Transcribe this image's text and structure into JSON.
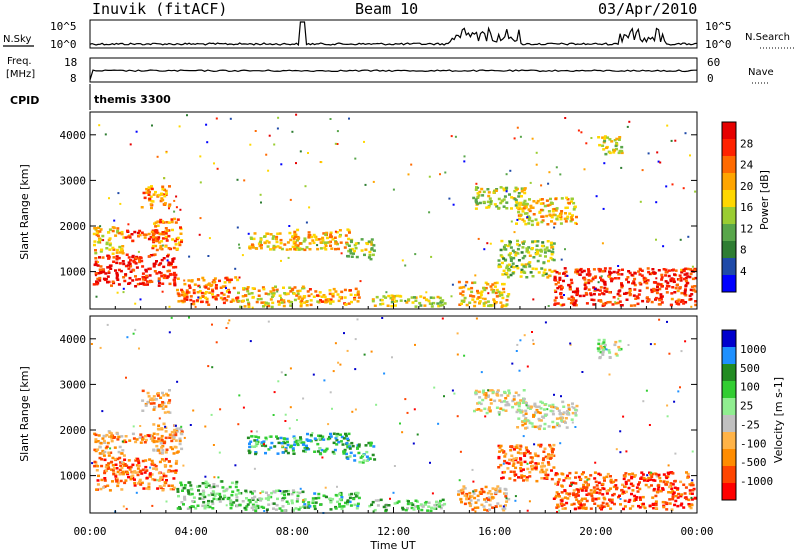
{
  "header": {
    "station": "Inuvik (fitACF)",
    "beam": "Beam 10",
    "date": "03/Apr/2010"
  },
  "nsky": {
    "label": "N.Sky",
    "ticks": [
      "10^5",
      "10^0"
    ],
    "right_label": "N.Search",
    "right_ticks": [
      "10^5",
      "10^0"
    ]
  },
  "freq": {
    "label_lines": [
      "Freq.",
      "[MHz]"
    ],
    "ticks": [
      "18",
      "8"
    ],
    "right_label": "Nave",
    "right_ticks": [
      "60",
      "0"
    ]
  },
  "cpid": {
    "label": "CPID",
    "value": "themis 3300"
  },
  "colors": {
    "power": [
      "#0000ff",
      "#1f4aa8",
      "#2e7d32",
      "#58a64a",
      "#9acd32",
      "#ffd700",
      "#ffa500",
      "#ff6a00",
      "#ff2200",
      "#e60000"
    ],
    "velocity": [
      "#ff0000",
      "#ff4500",
      "#ff8c00",
      "#ffb347",
      "#c0c0c0",
      "#90ee90",
      "#32cd32",
      "#228b22",
      "#1e90ff",
      "#0000cd"
    ]
  },
  "chart_data": [
    {
      "type": "heatmap",
      "title": "Power",
      "ylabel": "Slant Range [km]",
      "colorbar_label": "Power [dB]",
      "ylim": [
        180,
        4500
      ],
      "yticks": [
        1000,
        2000,
        3000,
        4000
      ],
      "colorbar_ticks": [
        "4",
        "8",
        "12",
        "16",
        "20",
        "24",
        "28"
      ],
      "xlim": [
        0,
        24
      ],
      "regions": [
        {
          "x": [
            0.1,
            3.4
          ],
          "y": [
            700,
            1400
          ],
          "v": 0.88
        },
        {
          "x": [
            0.1,
            1.3
          ],
          "y": [
            1400,
            2000
          ],
          "v": 0.6
        },
        {
          "x": [
            1.3,
            3.0
          ],
          "y": [
            1700,
            1950
          ],
          "v": 0.78
        },
        {
          "x": [
            2.0,
            3.1
          ],
          "y": [
            2400,
            2900
          ],
          "v": 0.68
        },
        {
          "x": [
            2.4,
            3.6
          ],
          "y": [
            1500,
            2200
          ],
          "v": 0.72
        },
        {
          "x": [
            3.4,
            5.8
          ],
          "y": [
            300,
            900
          ],
          "v": 0.73
        },
        {
          "x": [
            5.8,
            8.4
          ],
          "y": [
            250,
            700
          ],
          "v": 0.58
        },
        {
          "x": [
            6.2,
            8.2
          ],
          "y": [
            1500,
            1900
          ],
          "v": 0.55
        },
        {
          "x": [
            8.0,
            10.2
          ],
          "y": [
            1500,
            1950
          ],
          "v": 0.6
        },
        {
          "x": [
            8.4,
            10.6
          ],
          "y": [
            280,
            650
          ],
          "v": 0.66
        },
        {
          "x": [
            10.1,
            11.2
          ],
          "y": [
            1300,
            1750
          ],
          "v": 0.45
        },
        {
          "x": [
            11.0,
            14.0
          ],
          "y": [
            250,
            500
          ],
          "v": 0.5
        },
        {
          "x": [
            15.1,
            17.2
          ],
          "y": [
            2400,
            2900
          ],
          "v": 0.48
        },
        {
          "x": [
            16.8,
            19.2
          ],
          "y": [
            2050,
            2650
          ],
          "v": 0.6
        },
        {
          "x": [
            16.1,
            18.3
          ],
          "y": [
            900,
            1700
          ],
          "v": 0.45
        },
        {
          "x": [
            14.5,
            16.5
          ],
          "y": [
            250,
            800
          ],
          "v": 0.62
        },
        {
          "x": [
            18.3,
            23.9
          ],
          "y": [
            280,
            1100
          ],
          "v": 0.86
        },
        {
          "x": [
            20.0,
            21.0
          ],
          "y": [
            3600,
            4000
          ],
          "v": 0.5
        }
      ]
    },
    {
      "type": "heatmap",
      "title": "Velocity",
      "ylabel": "Slant Range [km]",
      "colorbar_label": "Velocity [m s-1]",
      "ylim": [
        180,
        4500
      ],
      "yticks": [
        1000,
        2000,
        3000,
        4000
      ],
      "colorbar_ticks": [
        "1000",
        "500",
        "100",
        "25",
        "-25",
        "-100",
        "-500",
        "-1000"
      ],
      "xlim": [
        0,
        24
      ],
      "regions": [
        {
          "x": [
            0.1,
            3.4
          ],
          "y": [
            700,
            1400
          ],
          "v": 0.22
        },
        {
          "x": [
            0.1,
            1.3
          ],
          "y": [
            1400,
            2000
          ],
          "v": 0.28
        },
        {
          "x": [
            1.3,
            3.0
          ],
          "y": [
            1700,
            1950
          ],
          "v": 0.25
        },
        {
          "x": [
            2.0,
            3.1
          ],
          "y": [
            2400,
            2900
          ],
          "v": 0.3
        },
        {
          "x": [
            2.4,
            3.6
          ],
          "y": [
            1500,
            2200
          ],
          "v": 0.3
        },
        {
          "x": [
            3.4,
            5.8
          ],
          "y": [
            300,
            900
          ],
          "v": 0.62
        },
        {
          "x": [
            5.8,
            8.4
          ],
          "y": [
            250,
            700
          ],
          "v": 0.58
        },
        {
          "x": [
            6.2,
            8.2
          ],
          "y": [
            1500,
            1900
          ],
          "v": 0.72
        },
        {
          "x": [
            8.0,
            10.2
          ],
          "y": [
            1500,
            1950
          ],
          "v": 0.72
        },
        {
          "x": [
            8.4,
            10.6
          ],
          "y": [
            280,
            650
          ],
          "v": 0.66
        },
        {
          "x": [
            10.1,
            11.2
          ],
          "y": [
            1300,
            1750
          ],
          "v": 0.72
        },
        {
          "x": [
            11.0,
            14.0
          ],
          "y": [
            250,
            500
          ],
          "v": 0.6
        },
        {
          "x": [
            15.1,
            17.2
          ],
          "y": [
            2400,
            2900
          ],
          "v": 0.42
        },
        {
          "x": [
            16.8,
            19.2
          ],
          "y": [
            2050,
            2650
          ],
          "v": 0.42
        },
        {
          "x": [
            16.1,
            18.3
          ],
          "y": [
            900,
            1700
          ],
          "v": 0.22
        },
        {
          "x": [
            14.5,
            16.5
          ],
          "y": [
            250,
            800
          ],
          "v": 0.3
        },
        {
          "x": [
            18.3,
            23.9
          ],
          "y": [
            280,
            1100
          ],
          "v": 0.15
        },
        {
          "x": [
            20.0,
            21.0
          ],
          "y": [
            3600,
            4000
          ],
          "v": 0.5
        }
      ]
    }
  ],
  "xaxis": {
    "ticks": [
      "00:00",
      "04:00",
      "08:00",
      "12:00",
      "16:00",
      "20:00",
      "00:00"
    ],
    "label": "Time UT"
  }
}
